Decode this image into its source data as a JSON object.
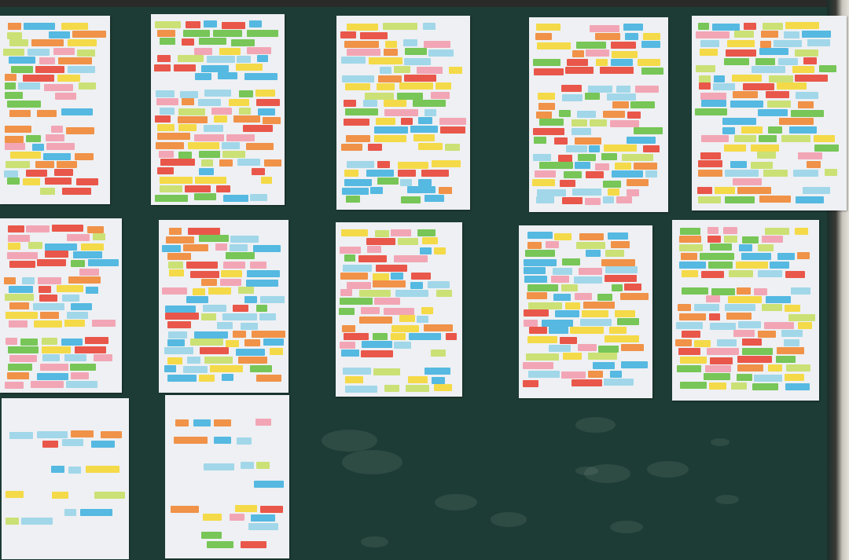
{
  "scene": {
    "subject": "chalkboard",
    "board_color": "#1d3c35",
    "paper_color": "#eef0f3",
    "note_colors": [
      "#e84a3c",
      "#f4d83a",
      "#48b4e0",
      "#6cc24a",
      "#f08a3a",
      "#f2a0b0",
      "#9ad5e8",
      "#c8e06a"
    ],
    "papers_count": 12
  }
}
